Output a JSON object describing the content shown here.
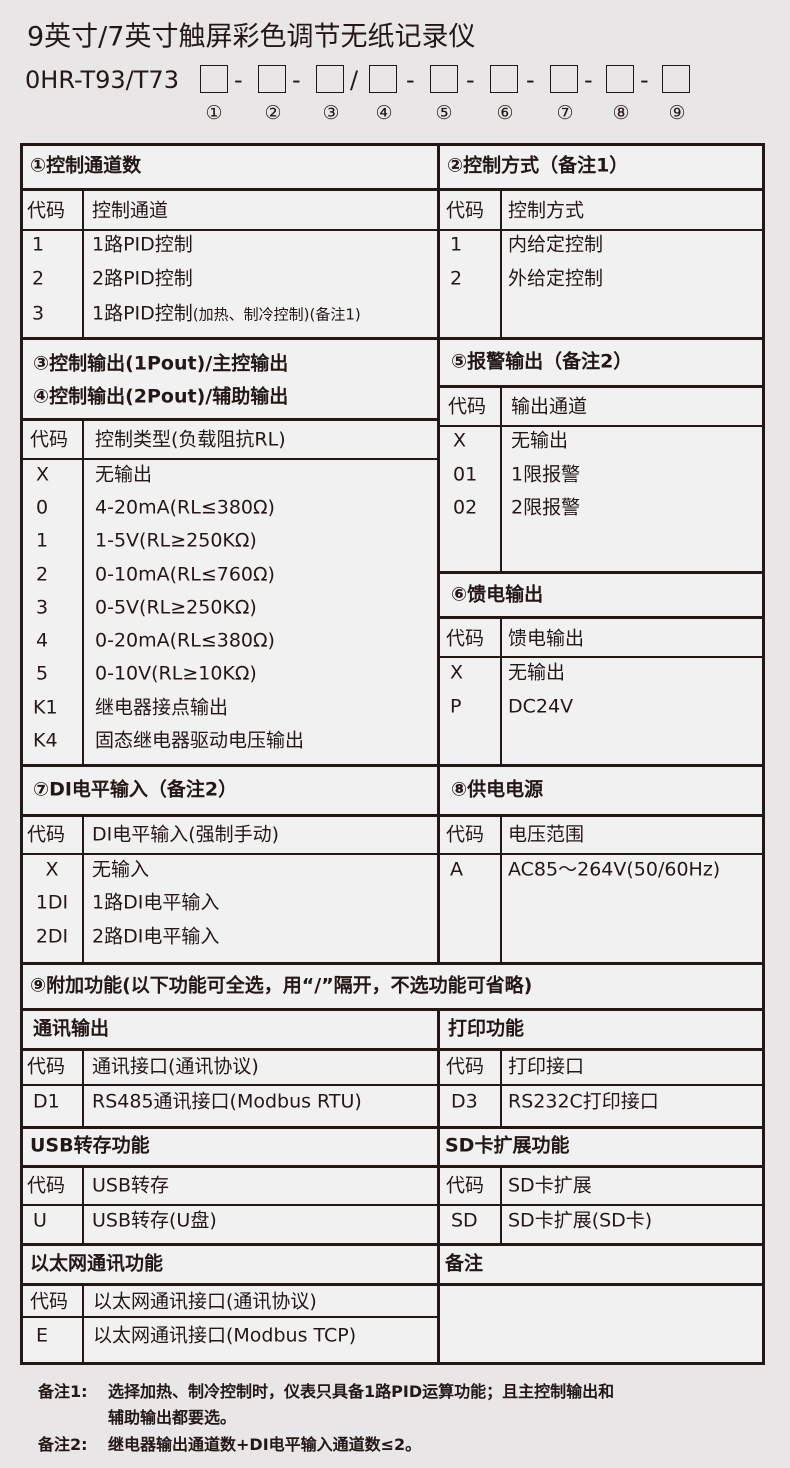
{
  "title": "9英寸/7英寸触屏彩色调节无纸记录仪",
  "model": {
    "prefix": "0HR-T93/T73",
    "separators": [
      "-",
      "-",
      "/",
      "-",
      "-",
      "-",
      "-",
      "-"
    ],
    "positions": [
      "①",
      "②",
      "③",
      "④",
      "⑤",
      "⑥",
      "⑦",
      "⑧",
      "⑨"
    ]
  },
  "code_label": "代码",
  "s1": {
    "title": "①控制通道数",
    "col": "控制通道",
    "rows": [
      {
        "code": "1",
        "desc": "1路PID控制"
      },
      {
        "code": "2",
        "desc": "2路PID控制"
      },
      {
        "code": "3",
        "desc": "1路PID控制",
        "note": "(加热、制冷控制)(备注1)"
      }
    ]
  },
  "s2": {
    "title": "②控制方式（备注1）",
    "col": "控制方式",
    "rows": [
      {
        "code": "1",
        "desc": "内给定控制"
      },
      {
        "code": "2",
        "desc": "外给定控制"
      }
    ]
  },
  "s34": {
    "title1": "③控制输出(1Pout)/主控输出",
    "title2": "④控制输出(2Pout)/辅助输出",
    "col": "控制类型(负载阻抗RL)",
    "rows": [
      {
        "code": "X",
        "desc": "无输出"
      },
      {
        "code": "0",
        "desc": "4-20mA(RL≤380Ω)"
      },
      {
        "code": "1",
        "desc": "1-5V(RL≥250KΩ)"
      },
      {
        "code": "2",
        "desc": "0-10mA(RL≤760Ω)"
      },
      {
        "code": "3",
        "desc": "0-5V(RL≥250KΩ)"
      },
      {
        "code": "4",
        "desc": "0-20mA(RL≤380Ω)"
      },
      {
        "code": "5",
        "desc": "0-10V(RL≥10KΩ)"
      },
      {
        "code": "K1",
        "desc": "继电器接点输出"
      },
      {
        "code": "K4",
        "desc": "固态继电器驱动电压输出"
      }
    ]
  },
  "s5": {
    "title": "⑤报警输出（备注2）",
    "col": "输出通道",
    "rows": [
      {
        "code": "X",
        "desc": "无输出"
      },
      {
        "code": "01",
        "desc": "1限报警"
      },
      {
        "code": "02",
        "desc": "2限报警"
      }
    ]
  },
  "s6": {
    "title": "⑥馈电输出",
    "col": "馈电输出",
    "rows": [
      {
        "code": "X",
        "desc": "无输出"
      },
      {
        "code": "P",
        "desc": "DC24V"
      }
    ]
  },
  "s7": {
    "title": "⑦DI电平输入（备注2）",
    "col": "DI电平输入(强制手动)",
    "rows": [
      {
        "code": "X",
        "desc": "无输入"
      },
      {
        "code": "1DI",
        "desc": "1路DI电平输入"
      },
      {
        "code": "2DI",
        "desc": "2路DI电平输入"
      }
    ]
  },
  "s8": {
    "title": "⑧供电电源",
    "col": "电压范围",
    "rows": [
      {
        "code": "A",
        "desc": "AC85～264V(50/60Hz)"
      }
    ]
  },
  "s9": {
    "title": "⑨附加功能(以下功能可全选，用“/”隔开，不选功能可省略)",
    "comm": {
      "title": "通讯输出",
      "col": "通讯接口(通讯协议)",
      "code": "D1",
      "desc": "RS485通讯接口(Modbus RTU)"
    },
    "print": {
      "title": "打印功能",
      "col": "打印接口",
      "code": "D3",
      "desc": "RS232C打印接口"
    },
    "usb": {
      "title": "USB转存功能",
      "col": "USB转存",
      "code": "U",
      "desc": "USB转存(U盘)"
    },
    "sd": {
      "title": "SD卡扩展功能",
      "col": "SD卡扩展",
      "code": "SD",
      "desc": "SD卡扩展(SD卡)"
    },
    "eth": {
      "title": "以太网通讯功能",
      "col": "以太网通讯接口(通讯协议)",
      "code": "E",
      "desc": "以太网通讯接口(Modbus TCP)"
    },
    "remark": {
      "title": "备注"
    }
  },
  "notes": [
    {
      "label": "备注1:",
      "lines": [
        "选择加热、制冷控制时，仪表只具备1路PID运算功能；且主控制输出和",
        "辅助输出都要选。"
      ]
    },
    {
      "label": "备注2:",
      "lines": [
        "继电器输出通道数+DI电平输入通道数≤2。"
      ]
    }
  ],
  "colors": {
    "ink": "#231815",
    "background": "#e8e6e7",
    "cell": "#f1f1f1"
  }
}
